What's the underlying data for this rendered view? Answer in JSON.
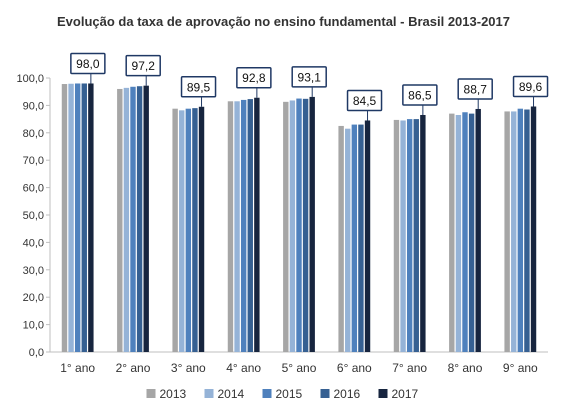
{
  "chart_data": {
    "type": "bar",
    "title": "Evolução da taxa de aprovação no ensino fundamental - Brasil 2013-2017",
    "xlabel": "",
    "ylabel": "",
    "ylim": [
      0,
      100
    ],
    "yticks": [
      "0,0",
      "10,0",
      "20,0",
      "30,0",
      "40,0",
      "50,0",
      "60,0",
      "70,0",
      "80,0",
      "90,0",
      "100,0"
    ],
    "grid": false,
    "legend_position": "bottom",
    "categories": [
      "1° ano",
      "2° ano",
      "3° ano",
      "4° ano",
      "5° ano",
      "6° ano",
      "7° ano",
      "8° ano",
      "9° ano"
    ],
    "series": [
      {
        "name": "2013",
        "color": "#a6a6a6",
        "values": [
          97.8,
          96.0,
          88.8,
          91.5,
          91.3,
          82.5,
          84.7,
          87.0,
          87.8
        ]
      },
      {
        "name": "2014",
        "color": "#95b3d7",
        "values": [
          97.9,
          96.4,
          88.2,
          91.5,
          91.8,
          81.5,
          84.5,
          86.5,
          87.8
        ]
      },
      {
        "name": "2015",
        "color": "#4f81bd",
        "values": [
          98.0,
          96.8,
          88.8,
          92.0,
          92.5,
          83.0,
          85.0,
          87.5,
          88.8
        ]
      },
      {
        "name": "2016",
        "color": "#366092",
        "values": [
          98.0,
          97.0,
          89.0,
          92.3,
          92.4,
          83.0,
          85.0,
          87.0,
          88.5
        ]
      },
      {
        "name": "2017",
        "color": "#17253f",
        "values": [
          98.0,
          97.2,
          89.5,
          92.8,
          93.1,
          84.5,
          86.5,
          88.7,
          89.6
        ]
      }
    ],
    "data_labels": [
      "98,0",
      "97,2",
      "89,5",
      "92,8",
      "93,1",
      "84,5",
      "86,5",
      "88,7",
      "89,6"
    ]
  }
}
